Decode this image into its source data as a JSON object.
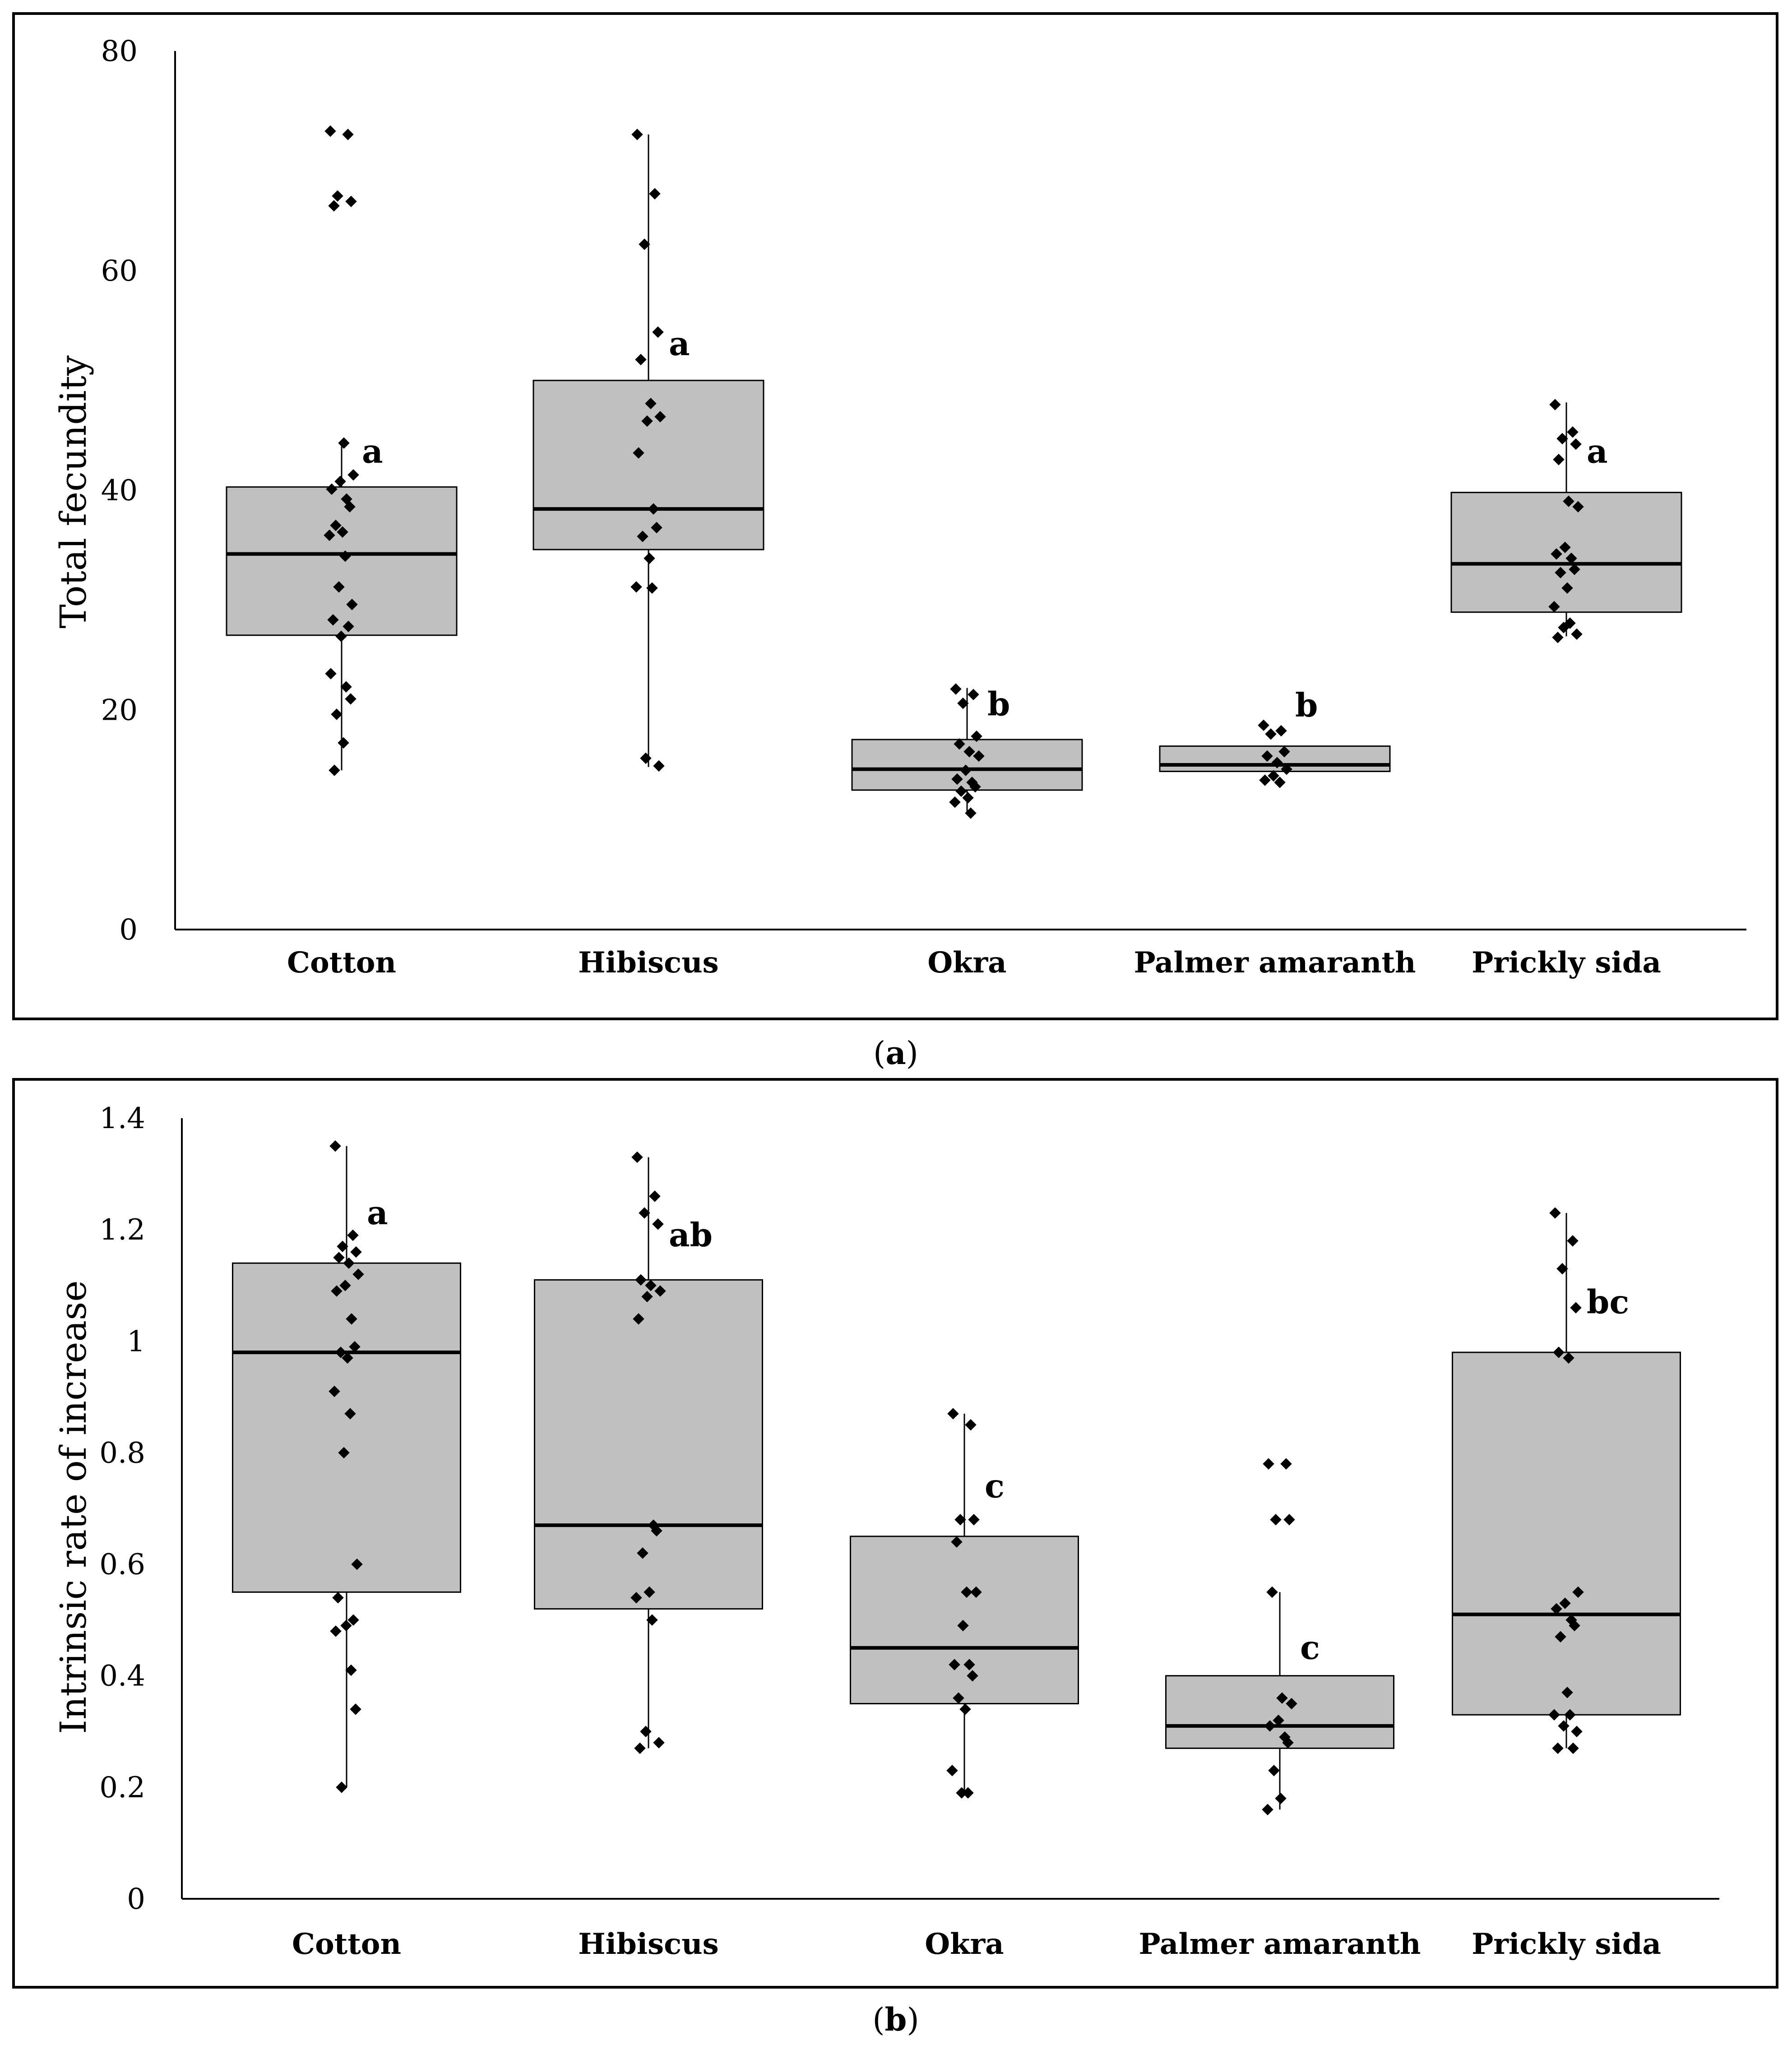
{
  "colors": {
    "box_fill": "#c0c0c0",
    "stroke": "#000000",
    "point": "#000000",
    "background": "#ffffff"
  },
  "chart_data": [
    {
      "panel": "a",
      "type": "box",
      "caption_open": "(",
      "caption_letter": "a",
      "caption_close": ")",
      "ylabel": "Total fecundity",
      "xlabel": "",
      "ylim": [
        0,
        80
      ],
      "yticks": [
        0,
        20,
        40,
        60,
        80
      ],
      "yticklabels": [
        "0",
        "20",
        "40",
        "60",
        "80"
      ],
      "categories": [
        "Cotton",
        "Hibiscus",
        "Okra",
        "Palmer amaranth",
        "Prickly sida"
      ],
      "boxes": [
        {
          "q1": 26.8,
          "median": 34.2,
          "q3": 40.3,
          "whisker_low": 14.5,
          "whisker_high": 44.3,
          "letter": "a",
          "letter_y": 42.5,
          "points": [
            72.7,
            72.4,
            66.8,
            66.3,
            65.9,
            44.3,
            41.4,
            40.8,
            40.1,
            39.2,
            38.5,
            36.8,
            36.2,
            35.9,
            34.0,
            31.2,
            29.6,
            28.2,
            27.6,
            26.7,
            23.3,
            22.1,
            21.0,
            19.6,
            17.0,
            14.5
          ]
        },
        {
          "q1": 34.6,
          "median": 38.3,
          "q3": 50.0,
          "whisker_low": 14.8,
          "whisker_high": 72.4,
          "letter": "a",
          "letter_y": 52.3,
          "points": [
            72.4,
            67.0,
            62.4,
            54.4,
            51.9,
            47.9,
            46.7,
            46.3,
            43.4,
            38.3,
            36.6,
            35.8,
            33.8,
            31.2,
            31.1,
            15.6,
            14.9
          ]
        },
        {
          "q1": 12.7,
          "median": 14.6,
          "q3": 17.3,
          "whisker_low": 10.5,
          "whisker_high": 22.0,
          "letter": "b",
          "letter_y": 19.5,
          "points": [
            21.9,
            21.4,
            20.6,
            17.6,
            16.9,
            16.2,
            15.8,
            14.5,
            13.7,
            13.4,
            13.0,
            12.6,
            12.0,
            11.6,
            10.6
          ]
        },
        {
          "q1": 14.4,
          "median": 15.0,
          "q3": 16.7,
          "whisker_low": 14.4,
          "whisker_high": 16.7,
          "letter": "b",
          "letter_y": 19.4,
          "points": [
            18.6,
            18.1,
            17.8,
            16.2,
            15.8,
            15.2,
            14.6,
            14.0,
            13.6,
            13.4
          ]
        },
        {
          "q1": 28.9,
          "median": 33.3,
          "q3": 39.8,
          "whisker_low": 26.7,
          "whisker_high": 48.0,
          "letter": "a",
          "letter_y": 42.5,
          "points": [
            47.8,
            45.3,
            44.7,
            44.2,
            42.8,
            39.0,
            38.5,
            34.8,
            34.2,
            33.8,
            32.8,
            32.5,
            31.1,
            29.4,
            27.9,
            27.5,
            26.9,
            26.6
          ]
        }
      ]
    },
    {
      "panel": "b",
      "type": "box",
      "caption_open": "(",
      "caption_letter": "b",
      "caption_close": ")",
      "ylabel": "Intrinsic rate of increase",
      "xlabel": "",
      "ylim": [
        0,
        1.4
      ],
      "yticks": [
        0,
        0.2,
        0.4,
        0.6,
        0.8,
        1,
        1.2,
        1.4
      ],
      "yticklabels": [
        "0",
        "0.2",
        "0.4",
        "0.6",
        "0.8",
        "1",
        "1.2",
        "1.4"
      ],
      "categories": [
        "Cotton",
        "Hibiscus",
        "Okra",
        "Palmer amaranth",
        "Prickly sida"
      ],
      "boxes": [
        {
          "q1": 0.55,
          "median": 0.98,
          "q3": 1.14,
          "whisker_low": 0.2,
          "whisker_high": 1.35,
          "letter": "a",
          "letter_y": 1.21,
          "points": [
            1.35,
            1.19,
            1.17,
            1.16,
            1.15,
            1.14,
            1.12,
            1.1,
            1.09,
            1.04,
            0.99,
            0.98,
            0.97,
            0.91,
            0.87,
            0.8,
            0.6,
            0.54,
            0.5,
            0.49,
            0.48,
            0.41,
            0.34,
            0.2
          ]
        },
        {
          "q1": 0.52,
          "median": 0.67,
          "q3": 1.11,
          "whisker_low": 0.27,
          "whisker_high": 1.33,
          "letter": "ab",
          "letter_y": 1.17,
          "points": [
            1.33,
            1.26,
            1.23,
            1.21,
            1.11,
            1.1,
            1.09,
            1.08,
            1.04,
            0.67,
            0.66,
            0.62,
            0.55,
            0.54,
            0.5,
            0.3,
            0.28,
            0.27
          ]
        },
        {
          "q1": 0.35,
          "median": 0.45,
          "q3": 0.65,
          "whisker_low": 0.19,
          "whisker_high": 0.87,
          "letter": "c",
          "letter_y": 0.72,
          "points": [
            0.87,
            0.85,
            0.68,
            0.68,
            0.64,
            0.55,
            0.55,
            0.49,
            0.42,
            0.42,
            0.4,
            0.36,
            0.34,
            0.23,
            0.19,
            0.19
          ]
        },
        {
          "q1": 0.27,
          "median": 0.31,
          "q3": 0.4,
          "whisker_low": 0.16,
          "whisker_high": 0.55,
          "letter": "c",
          "letter_y": 0.43,
          "points": [
            0.78,
            0.78,
            0.68,
            0.68,
            0.55,
            0.36,
            0.35,
            0.32,
            0.31,
            0.29,
            0.28,
            0.23,
            0.18,
            0.16
          ]
        },
        {
          "q1": 0.33,
          "median": 0.51,
          "q3": 0.98,
          "whisker_low": 0.27,
          "whisker_high": 1.23,
          "letter": "bc",
          "letter_y": 1.05,
          "points": [
            1.23,
            1.18,
            1.13,
            1.06,
            0.98,
            0.97,
            0.55,
            0.53,
            0.52,
            0.5,
            0.49,
            0.47,
            0.37,
            0.33,
            0.33,
            0.31,
            0.3,
            0.27,
            0.27
          ]
        }
      ]
    }
  ]
}
